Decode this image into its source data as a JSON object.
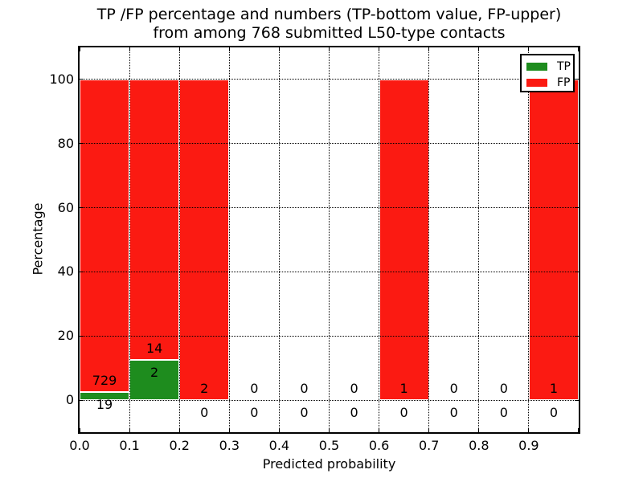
{
  "figure": {
    "title_line1": "TP /FP percentage and numbers (TP-bottom value, FP-upper)",
    "title_line2": "from among 768 submitted L50-type contacts",
    "xlabel": "Predicted probability",
    "ylabel": "Percentage"
  },
  "chart_data": {
    "type": "bar",
    "stacked": true,
    "title": "TP /FP percentage and numbers (TP-bottom value, FP-upper) from among 768 submitted L50-type contacts",
    "xlabel": "Predicted probability",
    "ylabel": "Percentage",
    "total_contacts": 768,
    "xlim": [
      0.0,
      1.0
    ],
    "ylim": [
      -10,
      110
    ],
    "grid": "dotted",
    "legend_position": "upper right",
    "bin_edges": [
      0.0,
      0.1,
      0.2,
      0.3,
      0.4,
      0.5,
      0.6,
      0.7,
      0.8,
      0.9,
      1.0
    ],
    "x_tick_labels": [
      "0.0",
      "0.1",
      "0.2",
      "0.3",
      "0.4",
      "0.5",
      "0.6",
      "0.7",
      "0.8",
      "0.9"
    ],
    "y_tick_values": [
      0,
      20,
      40,
      60,
      80,
      100
    ],
    "y_tick_labels": [
      "0",
      "20",
      "40",
      "60",
      "80",
      "100"
    ],
    "series": [
      {
        "name": "TP",
        "color": "#1e8c1e",
        "counts": [
          19,
          2,
          0,
          0,
          0,
          0,
          0,
          0,
          0,
          0
        ],
        "pct": [
          2.54,
          12.5,
          0,
          0,
          0,
          0,
          0,
          0,
          0,
          0
        ]
      },
      {
        "name": "FP",
        "color": "#fb1a12",
        "counts": [
          729,
          14,
          2,
          0,
          0,
          0,
          1,
          0,
          0,
          1
        ],
        "pct": [
          97.46,
          87.5,
          100,
          0,
          0,
          0,
          100,
          0,
          0,
          100
        ]
      }
    ]
  },
  "legend": {
    "entries": [
      {
        "label": "TP",
        "color": "#1e8c1e"
      },
      {
        "label": "FP",
        "color": "#fb1a12"
      }
    ]
  }
}
